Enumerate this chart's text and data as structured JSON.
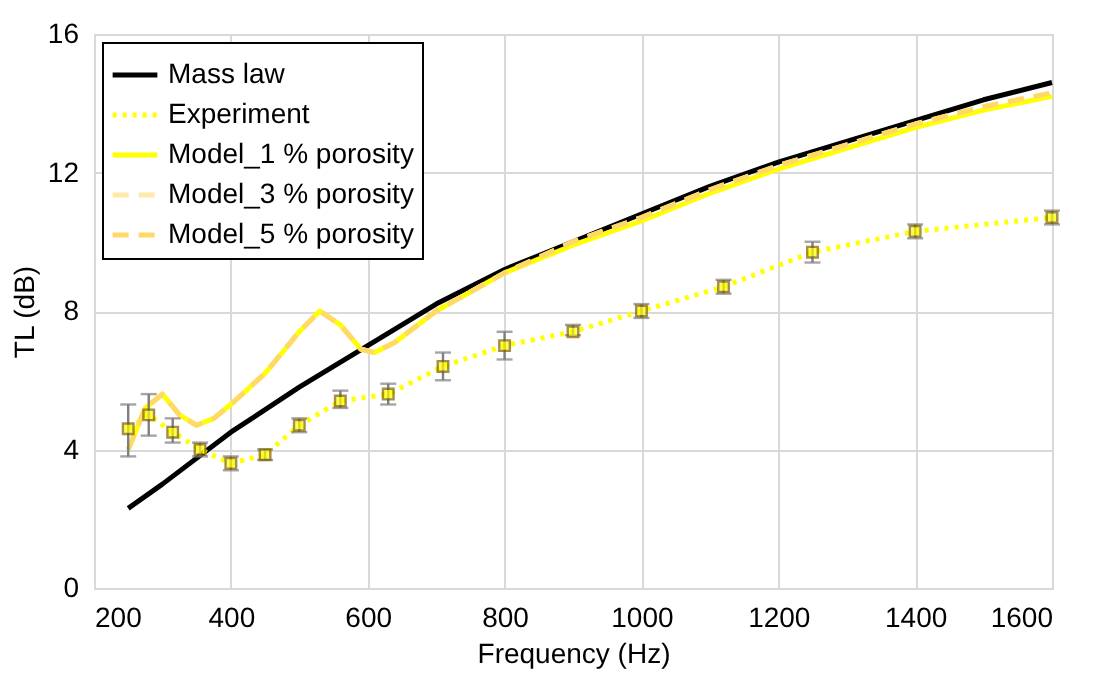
{
  "chart_data": {
    "type": "line",
    "xlabel": "Frequency (Hz)",
    "ylabel": "TL (dB)",
    "xlim": [
      200,
      1600
    ],
    "xticks": [
      200,
      400,
      600,
      800,
      1000,
      1200,
      1400,
      1600
    ],
    "ylim": [
      0,
      16
    ],
    "yticks": [
      0,
      4,
      8,
      12,
      16
    ],
    "grid": true,
    "legend": "top left",
    "series": [
      {
        "name": "Mass law",
        "color": "#000000",
        "line_style": "solid",
        "marker": "none",
        "x": [
          250,
          300,
          400,
          500,
          600,
          700,
          800,
          900,
          1000,
          1100,
          1200,
          1300,
          1400,
          1500,
          1600
        ],
        "values": [
          2.3,
          3.0,
          4.5,
          5.8,
          7.0,
          8.2,
          9.2,
          10.0,
          10.8,
          11.6,
          12.3,
          12.9,
          13.5,
          14.1,
          14.6
        ]
      },
      {
        "name": "Experiment",
        "color": "#ffff00",
        "line_style": "dotted",
        "marker": "square",
        "x": [
          250,
          280,
          315,
          355,
          400,
          450,
          500,
          560,
          630,
          710,
          800,
          900,
          1000,
          1120,
          1250,
          1400,
          1600
        ],
        "values": [
          4.6,
          5.0,
          4.5,
          4.0,
          3.6,
          3.85,
          4.7,
          5.4,
          5.6,
          6.4,
          7.0,
          7.4,
          8.0,
          8.7,
          9.7,
          10.3,
          10.7
        ],
        "errors": [
          [
            3.8,
            5.3
          ],
          [
            4.4,
            5.6
          ],
          [
            4.2,
            4.9
          ],
          [
            3.8,
            4.2
          ],
          [
            3.4,
            3.8
          ],
          [
            3.7,
            4.0
          ],
          [
            4.5,
            4.9
          ],
          [
            5.2,
            5.7
          ],
          [
            5.3,
            5.9
          ],
          [
            6.0,
            6.8
          ],
          [
            6.6,
            7.4
          ],
          [
            7.3,
            7.6
          ],
          [
            7.8,
            8.2
          ],
          [
            8.5,
            8.9
          ],
          [
            9.4,
            10.0
          ],
          [
            10.1,
            10.5
          ],
          [
            10.5,
            10.9
          ]
        ]
      },
      {
        "name": "Model_1 % porosity",
        "color": "#ffff00",
        "line_style": "solid",
        "marker": "none",
        "x": [
          250,
          275,
          300,
          325,
          350,
          375,
          400,
          450,
          500,
          530,
          560,
          590,
          610,
          640,
          700,
          800,
          900,
          1000,
          1100,
          1200,
          1300,
          1400,
          1500,
          1600
        ],
        "values": [
          4.0,
          5.2,
          5.6,
          5.0,
          4.7,
          4.9,
          5.3,
          6.2,
          7.4,
          8.0,
          7.6,
          6.9,
          6.8,
          7.1,
          8.0,
          9.1,
          9.9,
          10.6,
          11.4,
          12.1,
          12.7,
          13.3,
          13.8,
          14.2
        ]
      },
      {
        "name": "Model_3 % porosity",
        "color": "#fde9a9",
        "line_style": "dashed",
        "marker": "none",
        "x": [
          250,
          275,
          300,
          325,
          350,
          375,
          400,
          450,
          500,
          530,
          560,
          590,
          610,
          640,
          700,
          800,
          900,
          1000,
          1100,
          1200,
          1300,
          1400,
          1500,
          1600
        ],
        "values": [
          4.0,
          5.2,
          5.6,
          5.0,
          4.7,
          4.9,
          5.3,
          6.2,
          7.4,
          8.0,
          7.6,
          6.9,
          6.8,
          7.1,
          8.0,
          9.1,
          10.0,
          10.7,
          11.5,
          12.2,
          12.8,
          13.4,
          13.9,
          14.3
        ]
      },
      {
        "name": "Model_5 % porosity",
        "color": "#ffd966",
        "line_style": "dashed",
        "marker": "none",
        "x": [
          250,
          275,
          300,
          325,
          350,
          375,
          400,
          450,
          500,
          530,
          560,
          590,
          610,
          640,
          700,
          800,
          900,
          1000,
          1100,
          1200,
          1300,
          1400,
          1500,
          1600
        ],
        "values": [
          4.0,
          5.2,
          5.6,
          5.0,
          4.7,
          4.9,
          5.3,
          6.2,
          7.4,
          8.0,
          7.6,
          6.9,
          6.8,
          7.1,
          8.0,
          9.1,
          10.0,
          10.7,
          11.5,
          12.2,
          12.8,
          13.4,
          13.9,
          14.3
        ]
      }
    ]
  }
}
